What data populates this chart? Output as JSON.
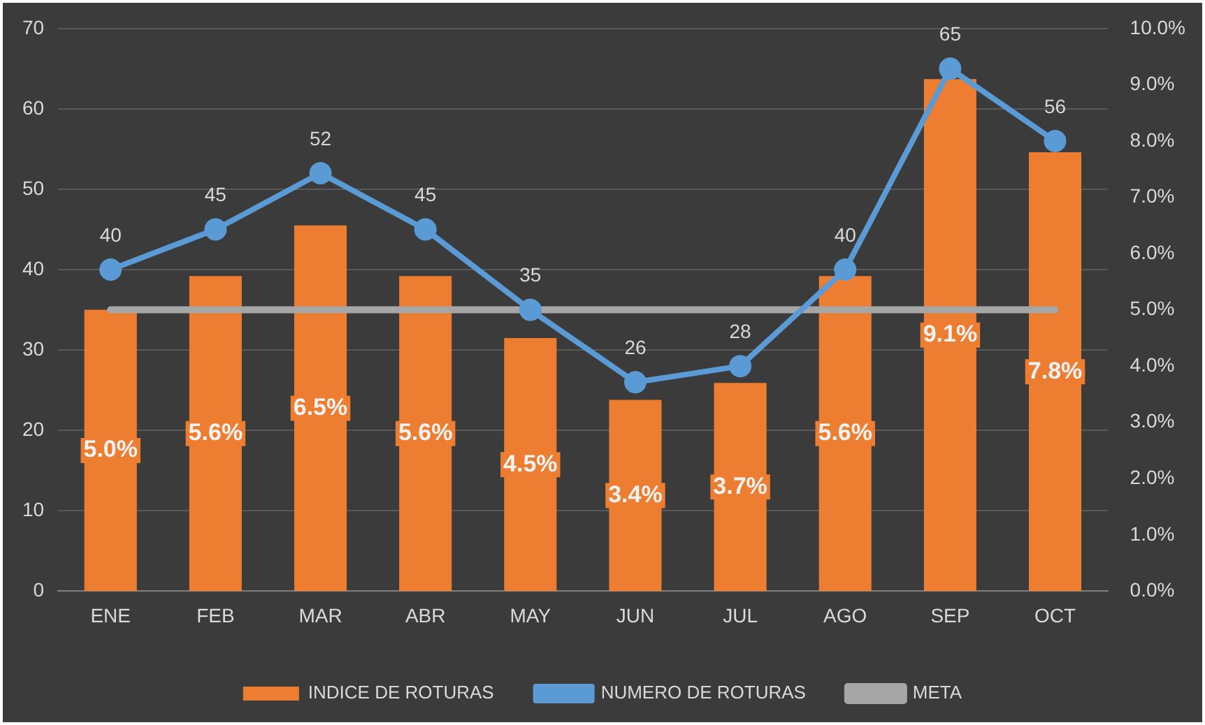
{
  "chart_data": {
    "type": "bar",
    "categories": [
      "ENE",
      "FEB",
      "MAR",
      "ABR",
      "MAY",
      "JUN",
      "JUL",
      "AGO",
      "SEP",
      "OCT"
    ],
    "series": [
      {
        "name": "INDICE DE ROTURAS",
        "axis": "y2",
        "color": "#ed7d31",
        "values": [
          5.0,
          5.6,
          6.5,
          5.6,
          4.5,
          3.4,
          3.7,
          5.6,
          9.1,
          7.8
        ],
        "value_labels": [
          "5.0%",
          "5.6%",
          "6.5%",
          "5.6%",
          "4.5%",
          "3.4%",
          "3.7%",
          "5.6%",
          "9.1%",
          "7.8%"
        ]
      },
      {
        "name": "NUMERO DE ROTURAS",
        "type": "line",
        "color": "#5b9bd5",
        "marker": "circle",
        "values": [
          40,
          45,
          52,
          45,
          35,
          26,
          28,
          40,
          65,
          56
        ],
        "value_labels": [
          "40",
          "45",
          "52",
          "45",
          "35",
          "26",
          "28",
          "40",
          "65",
          "56"
        ]
      },
      {
        "name": "META",
        "type": "line",
        "axis": "y2",
        "color": "#a6a6a6",
        "marker": "none",
        "values": [
          5.0,
          5.0,
          5.0,
          5.0,
          5.0,
          5.0,
          5.0,
          5.0,
          5.0,
          5.0
        ]
      }
    ],
    "ylim": [
      0,
      70
    ],
    "yticks": [
      0,
      10,
      20,
      30,
      40,
      50,
      60,
      70
    ],
    "y2lim": [
      0,
      10
    ],
    "y2ticks": [
      {
        "value": 0,
        "label": "0.0%"
      },
      {
        "value": 1,
        "label": "1.0%"
      },
      {
        "value": 2,
        "label": "2.0%"
      },
      {
        "value": 3,
        "label": "3.0%"
      },
      {
        "value": 4,
        "label": "4.0%"
      },
      {
        "value": 5,
        "label": "5.0%"
      },
      {
        "value": 6,
        "label": "6.0%"
      },
      {
        "value": 7,
        "label": "7.0%"
      },
      {
        "value": 8,
        "label": "8.0%"
      },
      {
        "value": 9,
        "label": "9.0%"
      },
      {
        "value": 10,
        "label": "10.0%"
      }
    ],
    "grid": "y",
    "legend": "bottom"
  }
}
